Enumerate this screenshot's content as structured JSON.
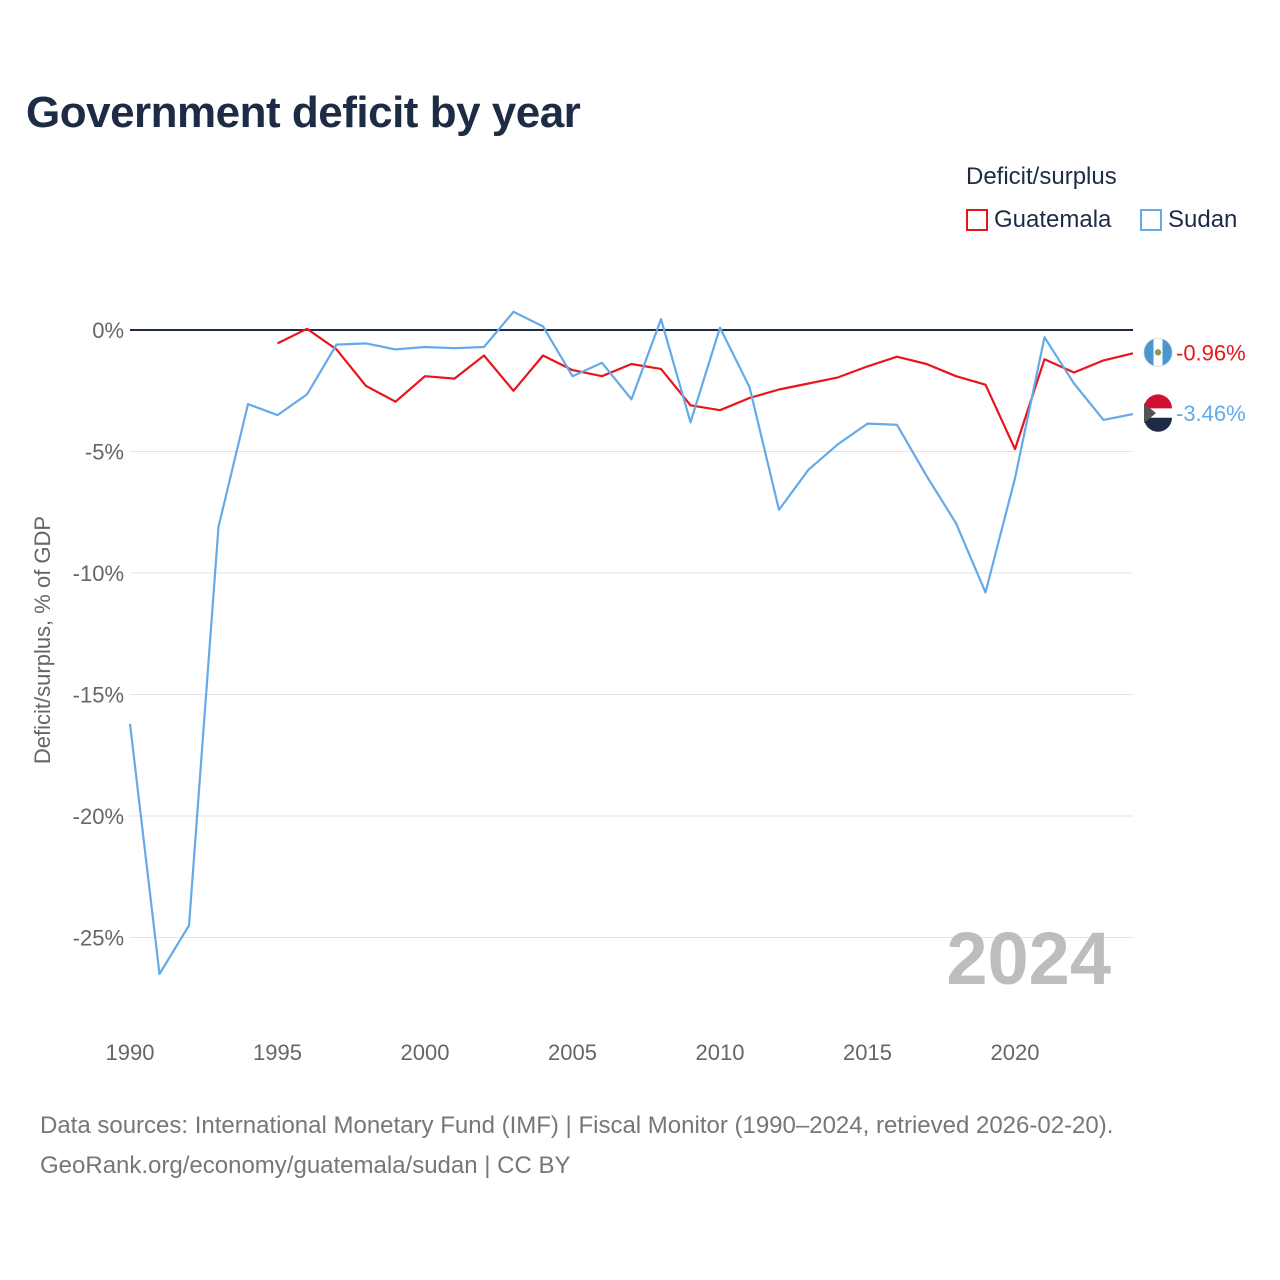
{
  "title": "Government deficit by year",
  "legend": {
    "title": "Deficit/surplus",
    "items": [
      {
        "label": "Guatemala",
        "color": "#e8151b"
      },
      {
        "label": "Sudan",
        "color": "#64a9e8"
      }
    ]
  },
  "source": {
    "line1": "Data sources: International Monetary Fund (IMF) | Fiscal Monitor (1990–2024, retrieved 2026-02-20).",
    "line2": "GeoRank.org/economy/guatemala/sudan | CC BY"
  },
  "chart_data": {
    "type": "line",
    "title": "Government deficit by year",
    "xlabel": "",
    "ylabel": "Deficit/surplus, % of GDP",
    "xlim": [
      1990,
      2024
    ],
    "ylim": [
      -27,
      2.5
    ],
    "x_ticks": [
      1990,
      1995,
      2000,
      2005,
      2010,
      2015,
      2020
    ],
    "y_ticks": [
      0,
      -5,
      -10,
      -15,
      -20,
      -25
    ],
    "y_tick_labels": [
      "0%",
      "-5%",
      "-10%",
      "-15%",
      "-20%",
      "-25%"
    ],
    "current_year_label": "2024",
    "series": [
      {
        "name": "Guatemala",
        "color": "#e8151b",
        "end_label": "-0.96%",
        "x": [
          1995,
          1996,
          1997,
          1998,
          1999,
          2000,
          2001,
          2002,
          2003,
          2004,
          2005,
          2006,
          2007,
          2008,
          2009,
          2010,
          2011,
          2012,
          2013,
          2014,
          2015,
          2016,
          2017,
          2018,
          2019,
          2020,
          2021,
          2022,
          2023,
          2024
        ],
        "values": [
          -0.55,
          0.05,
          -0.8,
          -2.3,
          -2.95,
          -1.9,
          -2.0,
          -1.05,
          -2.5,
          -1.05,
          -1.65,
          -1.9,
          -1.4,
          -1.6,
          -3.1,
          -3.3,
          -2.8,
          -2.45,
          -2.2,
          -1.95,
          -1.5,
          -1.1,
          -1.4,
          -1.9,
          -2.25,
          -4.9,
          -1.2,
          -1.75,
          -1.25,
          -0.96
        ]
      },
      {
        "name": "Sudan",
        "color": "#64a9e8",
        "end_label": "-3.46%",
        "x": [
          1990,
          1991,
          1992,
          1993,
          1994,
          1995,
          1996,
          1997,
          1998,
          1999,
          2000,
          2001,
          2002,
          2003,
          2004,
          2005,
          2006,
          2007,
          2008,
          2009,
          2010,
          2011,
          2012,
          2013,
          2014,
          2015,
          2016,
          2017,
          2018,
          2019,
          2020,
          2021,
          2022,
          2023,
          2024
        ],
        "values": [
          -16.2,
          -26.5,
          -24.5,
          -8.1,
          -3.05,
          -3.5,
          -2.65,
          -0.6,
          -0.55,
          -0.8,
          -0.7,
          -0.75,
          -0.7,
          0.75,
          0.15,
          -1.9,
          -1.35,
          -2.85,
          0.45,
          -3.8,
          0.1,
          -2.35,
          -7.4,
          -5.75,
          -4.7,
          -3.85,
          -3.9,
          -6.0,
          -7.95,
          -10.8,
          -6.1,
          -0.3,
          -2.2,
          -3.7,
          -3.46
        ]
      }
    ]
  }
}
